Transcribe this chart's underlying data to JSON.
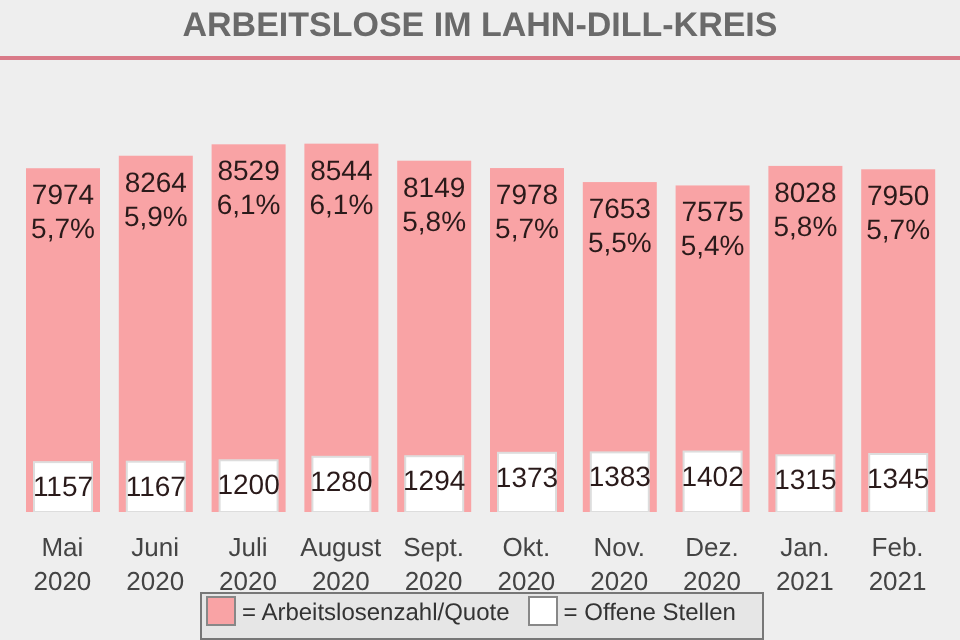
{
  "chart_data": {
    "type": "bar",
    "title": "ARBEITSLOSE IM LAHN-DILL-KREIS",
    "categories": [
      "Mai 2020",
      "Juni 2020",
      "Juli 2020",
      "August 2020",
      "Sept. 2020",
      "Okt. 2020",
      "Nov. 2020",
      "Dez. 2020",
      "Jan. 2021",
      "Feb. 2021"
    ],
    "series": [
      {
        "name": "= Arbeitslosenzahl/Quote",
        "color": "#f9a3a5",
        "values": [
          7974,
          8264,
          8529,
          8544,
          8149,
          7978,
          7653,
          7575,
          8028,
          7950
        ],
        "value_labels": [
          "7974 5,7%",
          "8264 5,9%",
          "8529 6,1%",
          "8544 6,1%",
          "8149 5,8%",
          "7978 5,7%",
          "7653 5,5%",
          "7575 5,4%",
          "8028 5,8%",
          "7950 5,7%"
        ]
      },
      {
        "name": "= Offene Stellen",
        "color": "#ffffff",
        "values": [
          1157,
          1167,
          1200,
          1280,
          1294,
          1373,
          1383,
          1402,
          1315,
          1345
        ],
        "value_labels": [
          "1157",
          "1167",
          "1200",
          "1280",
          "1294",
          "1373",
          "1383",
          "1402",
          "1315",
          "1345"
        ]
      }
    ],
    "legend": "bottom"
  }
}
